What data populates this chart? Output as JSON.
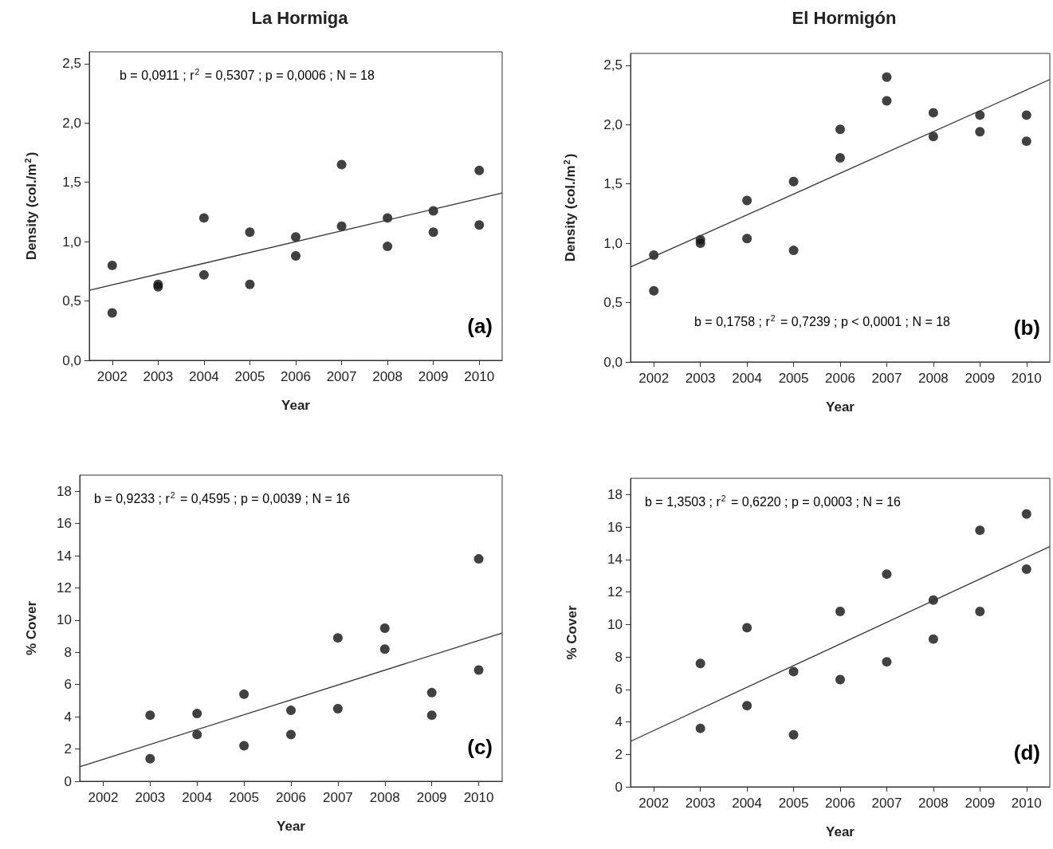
{
  "chart_data": [
    {
      "type": "scatter",
      "title": "La Hormiga",
      "xlabel": "Year",
      "ylabel": "Density (col./m$^{2}$)",
      "xlim": [
        2001.5,
        2010.5
      ],
      "xticks": [
        2002,
        2003,
        2004,
        2005,
        2006,
        2007,
        2008,
        2009,
        2010
      ],
      "ylim": [
        0,
        2.6
      ],
      "yticks": [
        {
          "value": 0,
          "label": "0,0"
        },
        {
          "value": 0.5,
          "label": "0,5"
        },
        {
          "value": 1,
          "label": "1,0"
        },
        {
          "value": 1.5,
          "label": "1,5"
        },
        {
          "value": 2,
          "label": "2,0"
        },
        {
          "value": 2.5,
          "label": "2,5"
        }
      ],
      "grid": false,
      "annotations": [
        "b = 0,0911 ; r$^{2}$ = 0,5307 ; p = 0,0006 ; N = 18",
        "(a)"
      ],
      "series": [
        {
          "type": "scatter",
          "marker": "circle",
          "color": "#111111",
          "x": [
            2002,
            2002,
            2003,
            2003,
            2004,
            2004,
            2005,
            2005,
            2006,
            2006,
            2007,
            2007,
            2008,
            2008,
            2009,
            2009,
            2010,
            2010
          ],
          "values": [
            0.8,
            0.4,
            0.64,
            0.62,
            1.2,
            0.72,
            1.08,
            0.64,
            1.04,
            0.88,
            1.65,
            1.13,
            1.2,
            0.96,
            1.26,
            1.08,
            1.6,
            1.14
          ]
        },
        {
          "type": "line",
          "marker": "none",
          "color": "#333333",
          "x": [
            2001.5,
            2010.5
          ],
          "values": [
            0.59,
            1.41
          ]
        }
      ]
    },
    {
      "type": "scatter",
      "title": "El Hormigón",
      "xlabel": "Year",
      "ylabel": "Density (col./m$^{2}$)",
      "xlim": [
        2001.5,
        2010.5
      ],
      "xticks": [
        2002,
        2003,
        2004,
        2005,
        2006,
        2007,
        2008,
        2009,
        2010
      ],
      "ylim": [
        0,
        2.6
      ],
      "yticks": [
        {
          "value": 0,
          "label": "0,0"
        },
        {
          "value": 0.5,
          "label": "0,5"
        },
        {
          "value": 1,
          "label": "1,0"
        },
        {
          "value": 1.5,
          "label": "1,5"
        },
        {
          "value": 2,
          "label": "2,0"
        },
        {
          "value": 2.5,
          "label": "2,5"
        }
      ],
      "grid": false,
      "annotations": [
        "b = 0,1758 ; r$^{2}$ = 0,7239 ; p < 0,0001 ; N = 18",
        "(b)"
      ],
      "series": [
        {
          "type": "scatter",
          "marker": "circle",
          "color": "#111111",
          "x": [
            2002,
            2002,
            2003,
            2003,
            2004,
            2004,
            2005,
            2005,
            2006,
            2006,
            2007,
            2007,
            2008,
            2008,
            2009,
            2009,
            2010,
            2010
          ],
          "values": [
            0.9,
            0.6,
            1.03,
            1.0,
            1.36,
            1.04,
            1.52,
            0.94,
            1.96,
            1.72,
            2.4,
            2.2,
            2.1,
            1.9,
            2.08,
            1.94,
            2.08,
            1.86
          ]
        },
        {
          "type": "line",
          "marker": "none",
          "color": "#333333",
          "x": [
            2001.5,
            2010.5
          ],
          "values": [
            0.8,
            2.38
          ]
        }
      ]
    },
    {
      "type": "scatter",
      "xlabel": "Year",
      "ylabel": "% Cover",
      "xlim": [
        2001.5,
        2010.5
      ],
      "xticks": [
        2002,
        2003,
        2004,
        2005,
        2006,
        2007,
        2008,
        2009,
        2010
      ],
      "ylim": [
        0,
        19
      ],
      "yticks": [
        0,
        2,
        4,
        6,
        8,
        10,
        12,
        14,
        16,
        18
      ],
      "grid": false,
      "annotations": [
        "b = 0,9233 ; r$^{2}$ = 0,4595 ; p = 0,0039 ; N = 16",
        "(c)"
      ],
      "series": [
        {
          "type": "scatter",
          "marker": "circle",
          "color": "#111111",
          "x": [
            2003,
            2003,
            2004,
            2004,
            2005,
            2005,
            2006,
            2006,
            2007,
            2007,
            2008,
            2008,
            2009,
            2009,
            2010,
            2010
          ],
          "values": [
            4.1,
            1.4,
            4.2,
            2.9,
            5.4,
            2.2,
            4.4,
            2.9,
            8.9,
            4.5,
            9.5,
            8.2,
            5.5,
            4.1,
            13.8,
            6.9
          ]
        },
        {
          "type": "line",
          "marker": "none",
          "color": "#333333",
          "x": [
            2001.5,
            2010.5
          ],
          "values": [
            0.9,
            9.2
          ]
        }
      ]
    },
    {
      "type": "scatter",
      "xlabel": "Year",
      "ylabel": "% Cover",
      "xlim": [
        2001.5,
        2010.5
      ],
      "xticks": [
        2002,
        2003,
        2004,
        2005,
        2006,
        2007,
        2008,
        2009,
        2010
      ],
      "ylim": [
        0,
        19
      ],
      "yticks": [
        0,
        2,
        4,
        6,
        8,
        10,
        12,
        14,
        16,
        18
      ],
      "grid": false,
      "annotations": [
        "b = 1,3503 ; r$^{2}$ = 0,6220 ; p = 0,0003 ; N = 16",
        "(d)"
      ],
      "series": [
        {
          "type": "scatter",
          "marker": "circle",
          "color": "#111111",
          "x": [
            2003,
            2003,
            2004,
            2004,
            2005,
            2005,
            2006,
            2006,
            2007,
            2007,
            2008,
            2008,
            2009,
            2009,
            2010,
            2010
          ],
          "values": [
            7.6,
            3.6,
            9.8,
            5.0,
            7.1,
            3.2,
            10.8,
            6.6,
            13.1,
            7.7,
            11.5,
            9.1,
            15.8,
            10.8,
            16.8,
            13.4
          ]
        },
        {
          "type": "line",
          "marker": "none",
          "color": "#333333",
          "x": [
            2001.5,
            2010.5
          ],
          "values": [
            2.8,
            14.8
          ]
        }
      ]
    }
  ]
}
